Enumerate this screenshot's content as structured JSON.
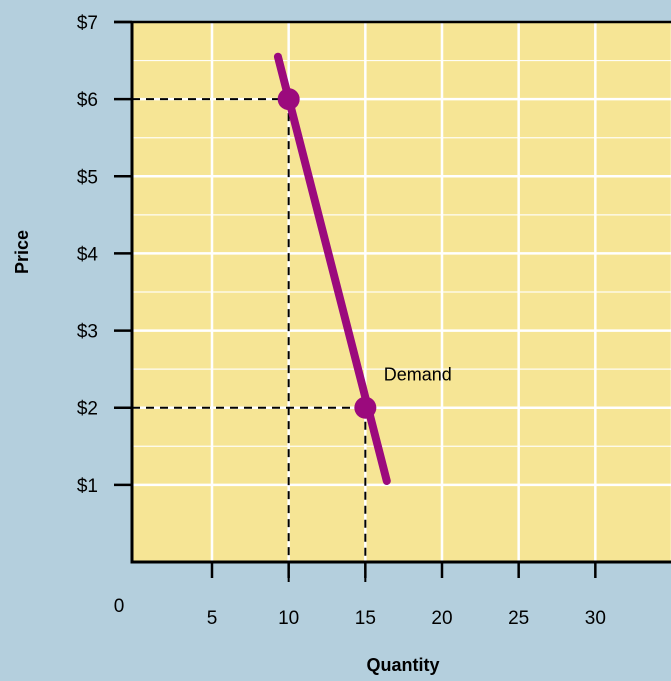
{
  "chart_data": {
    "type": "line",
    "xlabel": "Quantity",
    "ylabel": "Price",
    "origin_label": "0",
    "xlim": [
      0,
      35
    ],
    "ylim": [
      0,
      7
    ],
    "x_ticks": [
      {
        "value": 5,
        "label": "5"
      },
      {
        "value": 10,
        "label": "10"
      },
      {
        "value": 15,
        "label": "15"
      },
      {
        "value": 20,
        "label": "20"
      },
      {
        "value": 25,
        "label": "25"
      },
      {
        "value": 30,
        "label": "30"
      }
    ],
    "y_ticks": [
      {
        "value": 1,
        "label": "$1"
      },
      {
        "value": 2,
        "label": "$2"
      },
      {
        "value": 3,
        "label": "$3"
      },
      {
        "value": 4,
        "label": "$4"
      },
      {
        "value": 5,
        "label": "$5"
      },
      {
        "value": 6,
        "label": "$6"
      },
      {
        "value": 7,
        "label": "$7"
      }
    ],
    "grid": true,
    "series": [
      {
        "name": "Demand",
        "color": "#9b0a7d",
        "line": [
          [
            9.3,
            6.55
          ],
          [
            16.4,
            1.05
          ]
        ],
        "points": [
          [
            10,
            6
          ],
          [
            15,
            2
          ]
        ]
      }
    ],
    "guides": [
      {
        "x": 10,
        "y": 6
      },
      {
        "x": 15,
        "y": 2
      }
    ],
    "annotations": [
      {
        "text": "Demand",
        "x": 16.2,
        "y": 2.35
      }
    ],
    "colors": {
      "background": "#b4cfdd",
      "plot_area": "#f6e595",
      "grid": "#ffffff",
      "axis": "#000000",
      "guide": "#000000"
    }
  }
}
